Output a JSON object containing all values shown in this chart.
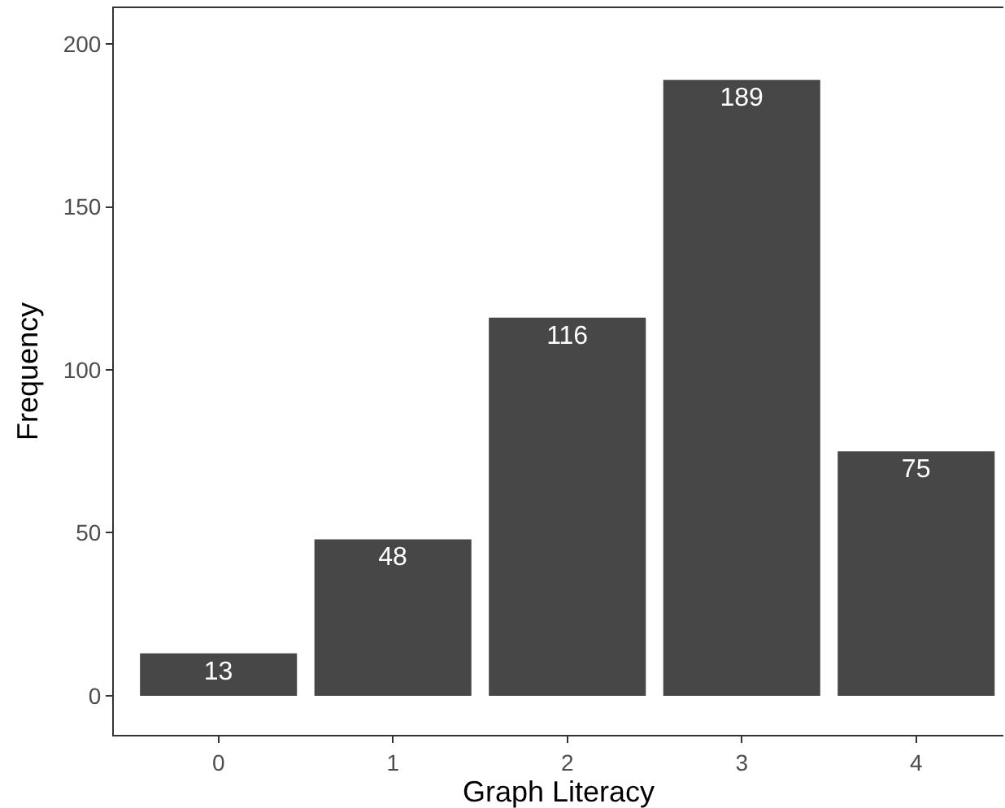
{
  "chart_data": {
    "type": "bar",
    "xlabel": "Graph Literacy",
    "ylabel": "Frequency",
    "categories": [
      "0",
      "1",
      "2",
      "3",
      "4"
    ],
    "values": [
      13,
      48,
      116,
      189,
      75
    ],
    "color": "#474747",
    "ylim": [
      -12,
      211
    ],
    "yticks": [
      0,
      50,
      100,
      150,
      200
    ],
    "data_labels": true
  }
}
